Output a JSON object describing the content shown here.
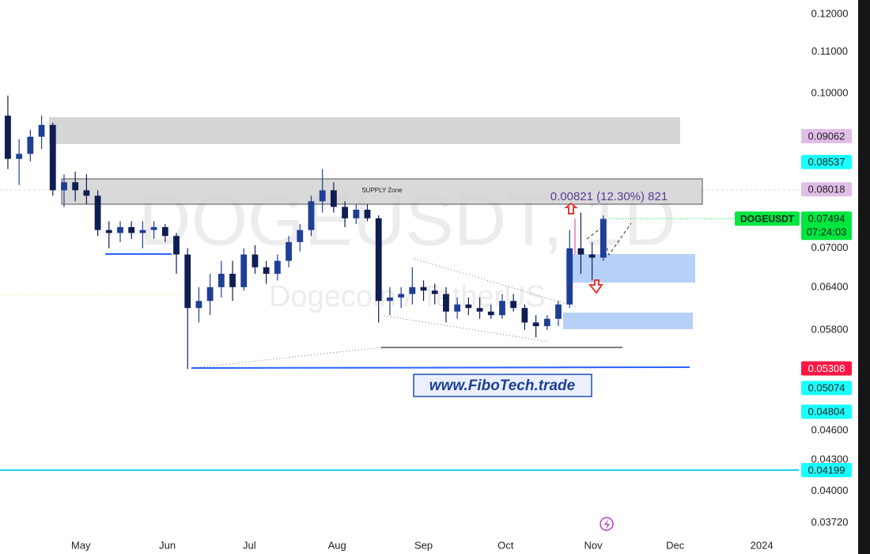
{
  "chart_data": {
    "type": "candlestick",
    "symbol": "DOGEUSDT",
    "watermark": "DOGEUSDT, 1D",
    "watermark_subtitle": "Dogecoin / TetherUS",
    "zone_label": "SUPPLY Zone",
    "measure_label": "0.00821 (12.30%) 821",
    "website": "www.FiboTech.trade",
    "log_scale": true,
    "grid": false,
    "up_color": "#1f3f96",
    "down_color": "#0f1d52",
    "xlim": [
      -0.7,
      70.4
    ],
    "xticks": [
      {
        "value": 6.5,
        "label": "May"
      },
      {
        "value": 14.2,
        "label": "Jun"
      },
      {
        "value": 21.5,
        "label": "Jul"
      },
      {
        "value": 29.3,
        "label": "Aug"
      },
      {
        "value": 37,
        "label": "Sep"
      },
      {
        "value": 44.3,
        "label": "Oct"
      },
      {
        "value": 52.1,
        "label": "Nov"
      },
      {
        "value": 59.4,
        "label": "Dec"
      },
      {
        "value": 67.1,
        "label": "2024"
      }
    ],
    "ylim": [
      0.0359,
      0.124
    ],
    "yticks": [
      {
        "value": 0.12,
        "label": "0.12000"
      },
      {
        "value": 0.11,
        "label": "0.11000"
      },
      {
        "value": 0.1,
        "label": "0.10000"
      },
      {
        "value": 0.07,
        "label": "0.07000"
      },
      {
        "value": 0.064,
        "label": "0.06400"
      },
      {
        "value": 0.058,
        "label": "0.05800"
      },
      {
        "value": 0.046,
        "label": "0.04600"
      },
      {
        "value": 0.043,
        "label": "0.04300"
      },
      {
        "value": 0.04,
        "label": "0.04000"
      },
      {
        "value": 0.0372,
        "label": "0.03720"
      }
    ],
    "open": [
      0.095,
      0.086,
      0.087,
      0.0905,
      0.093,
      0.08,
      0.0815,
      0.08,
      0.079,
      0.073,
      0.0725,
      0.0735,
      0.0725,
      0.073,
      0.0735,
      0.072,
      0.069,
      0.061,
      0.062,
      0.064,
      0.066,
      0.064,
      0.069,
      0.067,
      0.066,
      0.068,
      0.071,
      0.073,
      0.078,
      0.08,
      0.077,
      0.075,
      0.0765,
      0.075,
      0.062,
      0.0625,
      0.063,
      0.064,
      0.0635,
      0.063,
      0.0605,
      0.0615,
      0.061,
      0.0605,
      0.06,
      0.062,
      0.061,
      0.059,
      0.0585,
      0.0595,
      0.0615,
      0.07,
      0.069,
      0.0685
    ],
    "high": [
      0.0995,
      0.09,
      0.092,
      0.095,
      0.0935,
      0.083,
      0.0835,
      0.083,
      0.08,
      0.0745,
      0.0745,
      0.0745,
      0.0745,
      0.0745,
      0.074,
      0.0725,
      0.07,
      0.064,
      0.066,
      0.068,
      0.068,
      0.07,
      0.0705,
      0.068,
      0.069,
      0.072,
      0.074,
      0.079,
      0.084,
      0.0815,
      0.078,
      0.0775,
      0.0775,
      0.0755,
      0.064,
      0.064,
      0.067,
      0.065,
      0.0645,
      0.064,
      0.0625,
      0.0625,
      0.0625,
      0.0615,
      0.063,
      0.063,
      0.0615,
      0.06,
      0.06,
      0.062,
      0.073,
      0.076,
      0.071,
      0.0755
    ],
    "low": [
      0.084,
      0.081,
      0.0855,
      0.088,
      0.079,
      0.077,
      0.078,
      0.0775,
      0.072,
      0.07,
      0.071,
      0.0715,
      0.07,
      0.0715,
      0.071,
      0.066,
      0.053,
      0.059,
      0.06,
      0.0625,
      0.062,
      0.0635,
      0.066,
      0.0645,
      0.065,
      0.067,
      0.0695,
      0.072,
      0.076,
      0.076,
      0.0735,
      0.074,
      0.0745,
      0.059,
      0.06,
      0.061,
      0.0615,
      0.062,
      0.0615,
      0.059,
      0.0595,
      0.06,
      0.0595,
      0.0595,
      0.0595,
      0.0605,
      0.058,
      0.057,
      0.058,
      0.0585,
      0.061,
      0.066,
      0.065,
      0.068
    ],
    "close": [
      0.086,
      0.087,
      0.0905,
      0.093,
      0.08,
      0.0815,
      0.08,
      0.079,
      0.073,
      0.0725,
      0.0735,
      0.0725,
      0.073,
      0.0735,
      0.072,
      0.069,
      0.061,
      0.062,
      0.064,
      0.066,
      0.064,
      0.069,
      0.067,
      0.066,
      0.068,
      0.071,
      0.073,
      0.078,
      0.08,
      0.077,
      0.075,
      0.0765,
      0.075,
      0.062,
      0.0625,
      0.063,
      0.064,
      0.0635,
      0.063,
      0.0605,
      0.0615,
      0.061,
      0.0605,
      0.06,
      0.062,
      0.061,
      0.059,
      0.0585,
      0.0595,
      0.0615,
      0.07,
      0.069,
      0.0685,
      0.0749
    ],
    "price_lines": [
      {
        "value": 0.09062,
        "color": "#e1bee7",
        "text_color": "#222222"
      },
      {
        "value": 0.08537,
        "color": "#18ffff",
        "text_color": "#222222"
      },
      {
        "value": 0.08018,
        "color": "#e1bee7",
        "text_color": "#222222"
      },
      {
        "value": 0.05308,
        "color": "#ff1744",
        "text_color": "#ffffff"
      },
      {
        "value": 0.05074,
        "color": "#18ffff",
        "text_color": "#222222"
      },
      {
        "value": 0.04804,
        "color": "#18ffff",
        "text_color": "#222222"
      },
      {
        "value": 0.04199,
        "color": "#18ffff",
        "text_color": "#222222"
      }
    ],
    "last_price": {
      "value": 0.07494,
      "countdown": "07:24:03",
      "color": "#00e640"
    }
  }
}
